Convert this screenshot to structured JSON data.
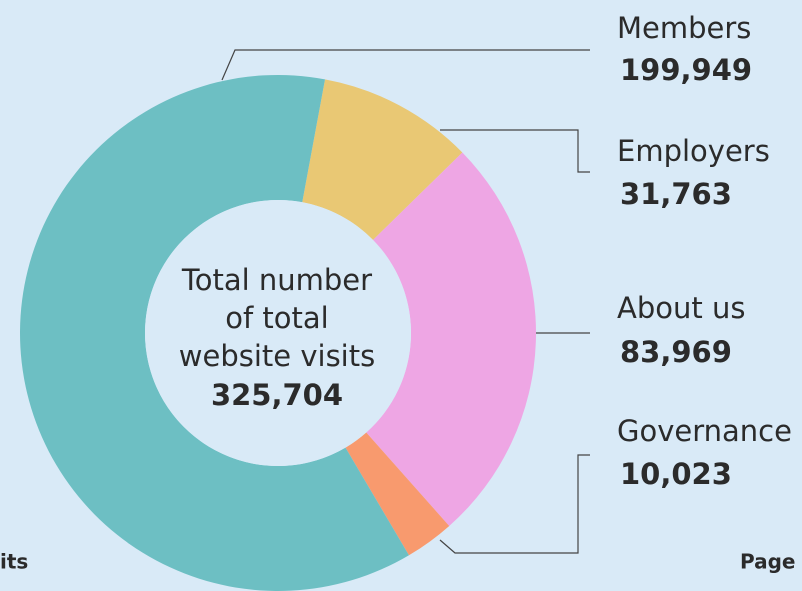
{
  "chart_data": {
    "type": "donut",
    "categories": [
      "Members",
      "Employers",
      "About us",
      "Governance"
    ],
    "values": [
      199949,
      31763,
      83969,
      10023
    ],
    "value_labels": [
      "199,949",
      "31,763",
      "83,969",
      "10,023"
    ],
    "colors": [
      "#6dbfc3",
      "#e9c874",
      "#eea6e4",
      "#f89a6e"
    ],
    "center_text": [
      "Total number",
      "of total",
      "website visits"
    ],
    "total": {
      "value": 325704,
      "label": "325,704"
    },
    "footer_left": "its",
    "footer_right": "Page"
  }
}
